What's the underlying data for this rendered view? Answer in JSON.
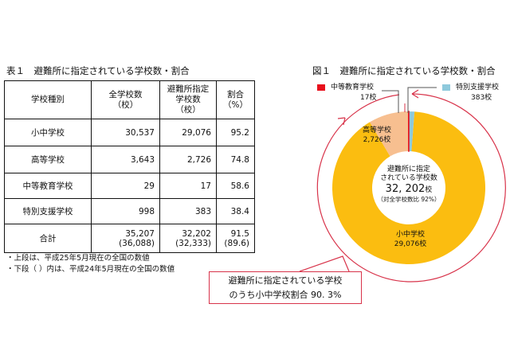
{
  "table": {
    "title": "表１　避難所に指定されている学校数・割合",
    "headers": [
      [
        "学校種別"
      ],
      [
        "全学校数",
        "（校）"
      ],
      [
        "避難所指定",
        "学校数",
        "（校）"
      ],
      [
        "割合",
        "（%）"
      ]
    ],
    "rows": [
      {
        "type": "小中学校",
        "total": "30,537",
        "designated": "29,076",
        "ratio": "95.2"
      },
      {
        "type": "高等学校",
        "total": "3,643",
        "designated": "2,726",
        "ratio": "74.8"
      },
      {
        "type": "中等教育学校",
        "total": "29",
        "designated": "17",
        "ratio": "58.6"
      },
      {
        "type": "特別支援学校",
        "total": "998",
        "designated": "383",
        "ratio": "38.4"
      }
    ],
    "total_row": {
      "type": "合計",
      "total": "35,207",
      "total_prev": "(36,088)",
      "designated": "32,202",
      "designated_prev": "(32,333)",
      "ratio": "91.5",
      "ratio_prev": "(89.6)"
    },
    "notes": [
      "・上段は、平成25年5月現在の全国の数値",
      "・下段（ ）内は、平成24年5月現在の全国の数値"
    ]
  },
  "chart_data": {
    "type": "pie",
    "title": "図１　避難所に指定されている学校数・割合",
    "slices": [
      {
        "name": "特別支援学校",
        "value": 383,
        "label": "383校",
        "color": "#8ec9dc"
      },
      {
        "name": "小中学校",
        "value": 29076,
        "label": "29,076校",
        "color": "#fbbd10"
      },
      {
        "name": "高等学校",
        "value": 2726,
        "label": "2,726校",
        "color": "#f7bf90"
      },
      {
        "name": "中等教育学校",
        "value": 17,
        "label": "17校",
        "color": "#e8101c"
      }
    ],
    "center": {
      "line1": "避難所に指定",
      "line2": "されている学校数",
      "value": "32, 202",
      "unit": "校",
      "sub": "（対全学校数比 92%）"
    },
    "callout": {
      "line1": "避難所に指定されている学校",
      "line2": "のうち小中学校割合 90. 3%"
    },
    "accent_color": "#d8334a"
  }
}
